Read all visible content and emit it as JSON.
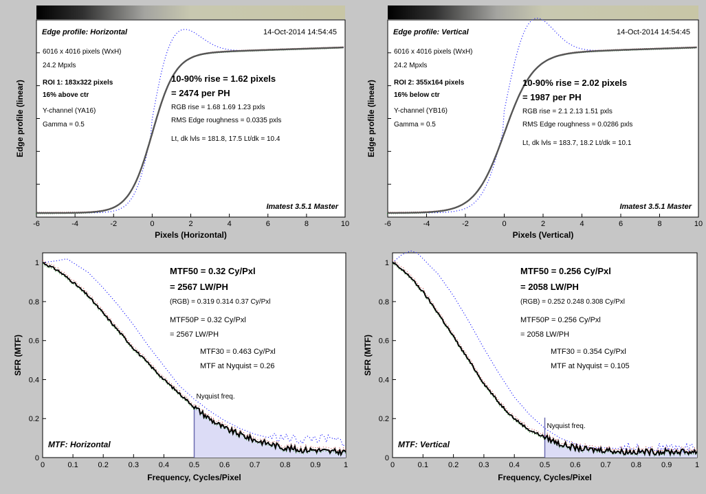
{
  "chart_data": [
    {
      "type": "line",
      "title": "Edge profile: Horizontal",
      "timestamp": "14-Oct-2014 14:54:45",
      "xlabel": "Pixels (Horizontal)",
      "ylabel": "Edge profile (linear)",
      "xlim": [
        -6,
        10
      ],
      "x_ticks": [
        "-6",
        "-4",
        "-2",
        "0",
        "2",
        "4",
        "6",
        "8",
        "10"
      ],
      "info": [
        "6016 x 4016 pixels (WxH)",
        "24.2 Mpxls",
        "ROI 1:  183x322 pixels",
        "16% above ctr",
        "Y-channel  (YA16)",
        "Gamma = 0.5"
      ],
      "rise": [
        "10-90% rise = 1.62 pixels",
        "= 2474 per PH"
      ],
      "rgb_rise": "RGB rise = 1.68  1.69  1.23 pxls",
      "roughness": "RMS Edge roughness = 0.0335 pxls",
      "levels": "Lt, dk lvls = 181.8, 17.5   Lt/dk = 10.4",
      "watermark": "Imatest 3.5.1 Master",
      "rise_width": 1.62,
      "overshoot": 0.18
    },
    {
      "type": "line",
      "title": "Edge profile: Vertical",
      "timestamp": "14-Oct-2014 14:54:45",
      "xlabel": "Pixels (Vertical)",
      "ylabel": "Edge profile (linear)",
      "xlim": [
        -6,
        10
      ],
      "x_ticks": [
        "-6",
        "-4",
        "-2",
        "0",
        "2",
        "4",
        "6",
        "8",
        "10"
      ],
      "info": [
        "6016 x 4016 pixels (WxH)",
        "24.2 Mpxls",
        "ROI 2:  355x164 pixels",
        "16% below ctr",
        "Y-channel  (YB16)",
        "Gamma = 0.5"
      ],
      "rise": [
        "10-90% rise = 2.02 pixels",
        "= 1987 per PH"
      ],
      "rgb_rise": "RGB rise = 2.1  2.13  1.51 pxls",
      "roughness": "RMS Edge roughness = 0.0286 pxls",
      "levels": "Lt, dk lvls = 183.7, 18.2   Lt/dk = 10.1",
      "watermark": "Imatest 3.5.1 Master",
      "rise_width": 2.02,
      "overshoot": 0.28
    },
    {
      "type": "line",
      "title": "MTF: Horizontal",
      "xlabel": "Frequency, Cycles/Pixel",
      "ylabel": "SFR (MTF)",
      "xlim": [
        0,
        1
      ],
      "ylim": [
        0,
        1.05
      ],
      "x_ticks": [
        "0",
        "0.1",
        "0.2",
        "0.3",
        "0.4",
        "0.5",
        "0.6",
        "0.7",
        "0.8",
        "0.9",
        "1"
      ],
      "y_ticks": [
        "0",
        "0.2",
        "0.4",
        "0.6",
        "0.8",
        "1"
      ],
      "mtf50": [
        "MTF50 = 0.32 Cy/Pxl",
        "= 2567 LW/PH"
      ],
      "rgb": "(RGB) = 0.319  0.314  0.37 Cy/Pxl",
      "mtf50p": [
        "MTF50P = 0.32 Cy/Pxl",
        "= 2567 LW/PH"
      ],
      "mtf30": "MTF30 = 0.463 Cy/Pxl",
      "nyquist_text": "MTF at Nyquist = 0.26",
      "nyquist_label": "Nyquist freq.",
      "series": [
        {
          "x": [
            0,
            0.05,
            0.1,
            0.15,
            0.2,
            0.25,
            0.3,
            0.35,
            0.4,
            0.45,
            0.5,
            0.55,
            0.6,
            0.65,
            0.7,
            0.75,
            0.8,
            0.85,
            0.9,
            0.95,
            1.0
          ],
          "values": [
            1.0,
            0.96,
            0.9,
            0.83,
            0.74,
            0.65,
            0.56,
            0.48,
            0.4,
            0.33,
            0.26,
            0.2,
            0.15,
            0.12,
            0.09,
            0.07,
            0.05,
            0.04,
            0.04,
            0.03,
            0.03
          ]
        },
        {
          "x": [
            0,
            0.05,
            0.08,
            0.1,
            0.15,
            0.2,
            0.25,
            0.3,
            0.35,
            0.4,
            0.45,
            0.5,
            0.55,
            0.6,
            0.65,
            0.7,
            0.75,
            0.8,
            0.85,
            0.9,
            0.95,
            1.0
          ],
          "values": [
            1.0,
            1.01,
            1.02,
            1.0,
            0.95,
            0.87,
            0.78,
            0.68,
            0.57,
            0.47,
            0.37,
            0.3,
            0.24,
            0.19,
            0.15,
            0.12,
            0.1,
            0.09,
            0.08,
            0.09,
            0.08,
            0.07
          ]
        }
      ]
    },
    {
      "type": "line",
      "title": "MTF: Vertical",
      "xlabel": "Frequency, Cycles/Pixel",
      "ylabel": "SFR (MTF)",
      "xlim": [
        0,
        1
      ],
      "ylim": [
        0,
        1.05
      ],
      "x_ticks": [
        "0",
        "0.1",
        "0.2",
        "0.3",
        "0.4",
        "0.5",
        "0.6",
        "0.7",
        "0.8",
        "0.9",
        "1"
      ],
      "y_ticks": [
        "0",
        "0.2",
        "0.4",
        "0.6",
        "0.8",
        "1"
      ],
      "mtf50": [
        "MTF50 = 0.256 Cy/Pxl",
        "= 2058 LW/PH"
      ],
      "rgb": "(RGB) = 0.252  0.248  0.308 Cy/Pxl",
      "mtf50p": [
        "MTF50P = 0.256 Cy/Pxl",
        "= 2058 LW/PH"
      ],
      "mtf30": "MTF30 = 0.354 Cy/Pxl",
      "nyquist_text": "MTF at Nyquist = 0.105",
      "nyquist_label": "Nyquist freq.",
      "series": [
        {
          "x": [
            0,
            0.05,
            0.1,
            0.15,
            0.2,
            0.25,
            0.3,
            0.35,
            0.4,
            0.45,
            0.5,
            0.55,
            0.6,
            0.65,
            0.7,
            0.75,
            0.8,
            0.85,
            0.9,
            0.95,
            1.0
          ],
          "values": [
            1.0,
            0.94,
            0.85,
            0.74,
            0.62,
            0.5,
            0.38,
            0.28,
            0.2,
            0.14,
            0.105,
            0.07,
            0.05,
            0.04,
            0.04,
            0.03,
            0.03,
            0.03,
            0.03,
            0.03,
            0.03
          ]
        },
        {
          "x": [
            0,
            0.03,
            0.06,
            0.08,
            0.1,
            0.15,
            0.2,
            0.25,
            0.3,
            0.35,
            0.4,
            0.45,
            0.5,
            0.55,
            0.6,
            0.65,
            0.7,
            0.8,
            0.9,
            1.0
          ],
          "values": [
            1.0,
            1.04,
            1.06,
            1.05,
            1.02,
            0.94,
            0.83,
            0.7,
            0.56,
            0.43,
            0.31,
            0.22,
            0.15,
            0.1,
            0.07,
            0.05,
            0.05,
            0.04,
            0.04,
            0.04
          ]
        }
      ]
    }
  ]
}
